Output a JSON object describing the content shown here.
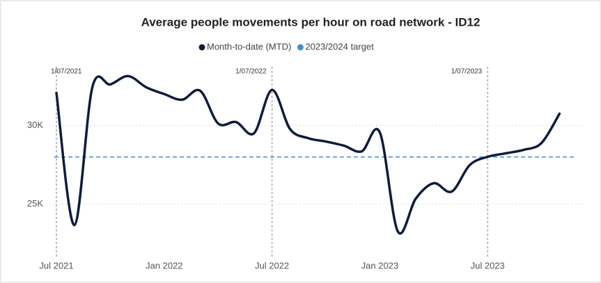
{
  "chart_data": {
    "type": "line",
    "title": "Average people movements per hour on road network - ID12",
    "x": [
      "2021-07",
      "2021-08",
      "2021-09",
      "2021-10",
      "2021-11",
      "2021-12",
      "2022-01",
      "2022-02",
      "2022-03",
      "2022-04",
      "2022-05",
      "2022-06",
      "2022-07",
      "2022-08",
      "2022-09",
      "2022-10",
      "2022-11",
      "2022-12",
      "2023-01",
      "2023-02",
      "2023-03",
      "2023-04",
      "2023-05",
      "2023-06",
      "2023-07",
      "2023-08",
      "2023-09",
      "2023-10",
      "2023-11"
    ],
    "series": [
      {
        "name": "Month-to-date (MTD)",
        "color": "#0d1b3e",
        "values": [
          32080,
          23670,
          32430,
          32610,
          33140,
          32430,
          32000,
          31640,
          32210,
          30130,
          30220,
          29510,
          32260,
          29780,
          29200,
          28980,
          28720,
          28360,
          29560,
          23270,
          25350,
          26330,
          25800,
          27480,
          28010,
          28230,
          28450,
          28890,
          30750
        ]
      }
    ],
    "target": {
      "name": "2023/2024 target",
      "color": "#3f8fd2",
      "value": 28000
    },
    "annotations": [
      {
        "x": "2021-07",
        "label": "1/07/2021"
      },
      {
        "x": "2022-07",
        "label": "1/07/2022"
      },
      {
        "x": "2023-07",
        "label": "1/07/2023"
      }
    ],
    "ylim": [
      21800,
      34000
    ],
    "yticks": [
      {
        "value": 25000,
        "label": "25K"
      },
      {
        "value": 30000,
        "label": "30K"
      }
    ],
    "xticks": [
      {
        "value": "2021-07",
        "label": "Jul 2021"
      },
      {
        "value": "2022-01",
        "label": "Jan 2022"
      },
      {
        "value": "2022-07",
        "label": "Jul 2022"
      },
      {
        "value": "2023-01",
        "label": "Jan 2023"
      },
      {
        "value": "2023-07",
        "label": "Jul 2023"
      }
    ],
    "grid": true
  }
}
